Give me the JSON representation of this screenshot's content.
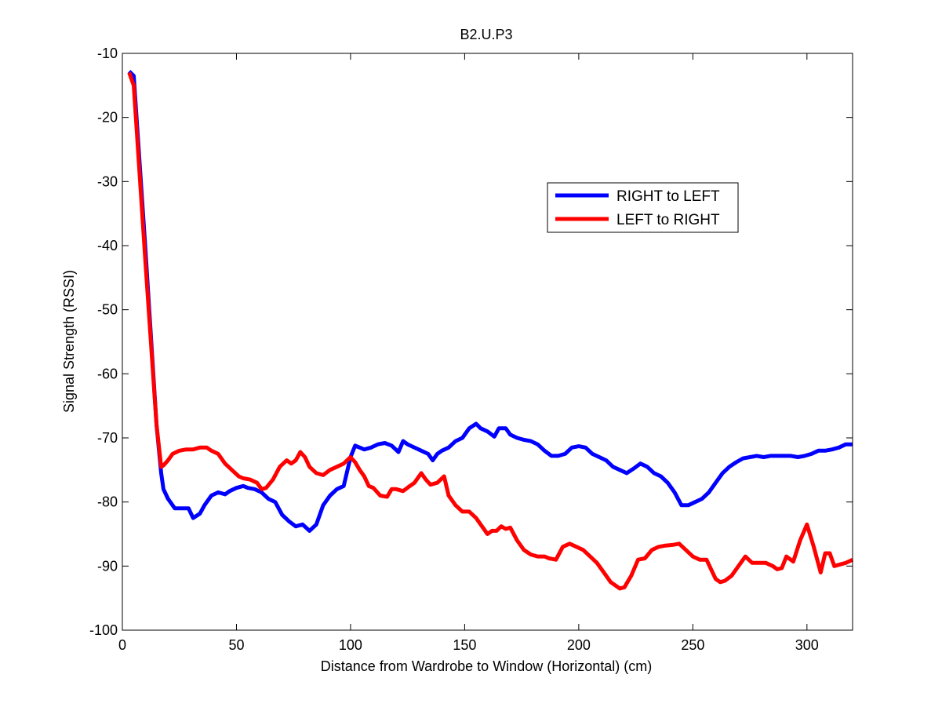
{
  "chart_data": {
    "type": "line",
    "title": "B2.U.P3",
    "xlabel": "Distance from Wardrobe to Window (Horizontal)  (cm)",
    "ylabel": "Signal Strength (RSSI)",
    "xlim": [
      0,
      320
    ],
    "ylim": [
      -100,
      -10
    ],
    "xticks": [
      0,
      50,
      100,
      150,
      200,
      250,
      300
    ],
    "yticks": [
      -100,
      -90,
      -80,
      -70,
      -60,
      -50,
      -40,
      -30,
      -20,
      -10
    ],
    "grid": false,
    "legend_position": "upper-right (inset)",
    "series": [
      {
        "name": "RIGHT to LEFT",
        "color": "#0000ff",
        "x": [
          3,
          5,
          10,
          15,
          17,
          18,
          20,
          23,
          26,
          29,
          31,
          34,
          36,
          39,
          42,
          45,
          47,
          50,
          53,
          55,
          58,
          61,
          64,
          67,
          70,
          73,
          76,
          79,
          82,
          85,
          88,
          91,
          94,
          97,
          100,
          102,
          104,
          106,
          109,
          112,
          115,
          118,
          121,
          123,
          125,
          128,
          131,
          134,
          136,
          138,
          140,
          143,
          146,
          149,
          152,
          155,
          157,
          160,
          163,
          165,
          168,
          170,
          173,
          176,
          179,
          182,
          185,
          188,
          191,
          194,
          197,
          200,
          203,
          206,
          209,
          212,
          215,
          218,
          221,
          224,
          227,
          230,
          233,
          236,
          239,
          242,
          245,
          248,
          251,
          254,
          257,
          260,
          263,
          266,
          269,
          272,
          275,
          278,
          281,
          284,
          287,
          290,
          293,
          296,
          299,
          302,
          305,
          308,
          311,
          314,
          317,
          320
        ],
        "y": [
          -12.8,
          -13.5,
          -40,
          -68,
          -75.5,
          -78,
          -79.5,
          -81,
          -81,
          -81,
          -82.5,
          -81.8,
          -80.5,
          -79,
          -78.5,
          -78.8,
          -78.3,
          -77.8,
          -77.5,
          -77.8,
          -78,
          -78.5,
          -79.5,
          -80,
          -82,
          -83,
          -83.8,
          -83.5,
          -84.5,
          -83.5,
          -80.5,
          -79,
          -78,
          -77.5,
          -73,
          -71.2,
          -71.5,
          -71.8,
          -71.5,
          -71,
          -70.8,
          -71.2,
          -72.2,
          -70.5,
          -71,
          -71.5,
          -72,
          -72.5,
          -73.5,
          -72.5,
          -72,
          -71.5,
          -70.5,
          -70,
          -68.5,
          -67.8,
          -68.5,
          -69,
          -69.8,
          -68.5,
          -68.5,
          -69.5,
          -70,
          -70.3,
          -70.5,
          -71,
          -72,
          -72.8,
          -72.8,
          -72.5,
          -71.5,
          -71.3,
          -71.5,
          -72.5,
          -73,
          -73.5,
          -74.5,
          -75,
          -75.5,
          -74.8,
          -74,
          -74.5,
          -75.5,
          -76,
          -77,
          -78.5,
          -80.5,
          -80.5,
          -80,
          -79.5,
          -78.5,
          -77,
          -75.5,
          -74.5,
          -73.8,
          -73.2,
          -73,
          -72.8,
          -73,
          -72.8,
          -72.8,
          -72.8,
          -72.8,
          -73,
          -72.8,
          -72.5,
          -72,
          -72,
          -71.8,
          -71.5,
          -71,
          -71
        ]
      },
      {
        "name": "LEFT to RIGHT",
        "color": "#ff0000",
        "x": [
          3,
          5,
          10,
          15,
          17,
          18,
          20,
          22,
          25,
          28,
          31,
          34,
          37,
          39,
          42,
          45,
          48,
          51,
          53,
          56,
          59,
          61,
          63,
          66,
          69,
          72,
          74,
          76,
          78,
          80,
          82,
          85,
          88,
          91,
          94,
          97,
          100,
          102,
          104,
          106,
          108,
          110,
          113,
          116,
          118,
          120,
          123,
          126,
          128,
          131,
          133,
          135,
          138,
          141,
          143,
          146,
          149,
          152,
          155,
          157,
          160,
          162,
          164,
          166,
          168,
          170,
          173,
          176,
          179,
          182,
          185,
          187,
          190,
          193,
          196,
          199,
          202,
          205,
          208,
          211,
          214,
          216,
          218,
          220,
          223,
          226,
          229,
          232,
          235,
          238,
          241,
          244,
          247,
          250,
          253,
          256,
          258,
          260,
          262,
          264,
          267,
          270,
          273,
          276,
          279,
          282,
          285,
          287,
          289,
          291,
          294,
          297,
          300,
          303,
          306,
          308,
          310,
          312,
          314,
          317,
          320
        ],
        "y": [
          -13,
          -15,
          -42,
          -68,
          -74.5,
          -74.3,
          -73.5,
          -72.5,
          -72,
          -71.8,
          -71.8,
          -71.5,
          -71.5,
          -72,
          -72.5,
          -74,
          -75,
          -76,
          -76.3,
          -76.5,
          -77,
          -78,
          -77.8,
          -76.5,
          -74.5,
          -73.5,
          -74,
          -73.5,
          -72.2,
          -73,
          -74.5,
          -75.5,
          -75.8,
          -75,
          -74.5,
          -74,
          -73,
          -73.8,
          -75,
          -76,
          -77.5,
          -77.8,
          -79,
          -79.2,
          -78,
          -78,
          -78.3,
          -77.5,
          -77,
          -75.5,
          -76.5,
          -77.3,
          -77,
          -76,
          -79,
          -80.5,
          -81.5,
          -81.5,
          -82.5,
          -83.5,
          -85,
          -84.5,
          -84.5,
          -83.8,
          -84.2,
          -84,
          -86,
          -87.5,
          -88.2,
          -88.5,
          -88.5,
          -88.8,
          -89,
          -87,
          -86.5,
          -87,
          -87.5,
          -88.5,
          -89.5,
          -91,
          -92.5,
          -93,
          -93.5,
          -93.3,
          -91.5,
          -89,
          -88.8,
          -87.5,
          -87,
          -86.8,
          -86.7,
          -86.5,
          -87.5,
          -88.5,
          -89,
          -89,
          -90.5,
          -92,
          -92.5,
          -92.3,
          -91.5,
          -90,
          -88.5,
          -89.5,
          -89.5,
          -89.5,
          -90,
          -90.5,
          -90.3,
          -88.5,
          -89.3,
          -86,
          -83.5,
          -87,
          -91,
          -88,
          -88,
          -90,
          -89.8,
          -89.5,
          -89
        ]
      }
    ]
  }
}
